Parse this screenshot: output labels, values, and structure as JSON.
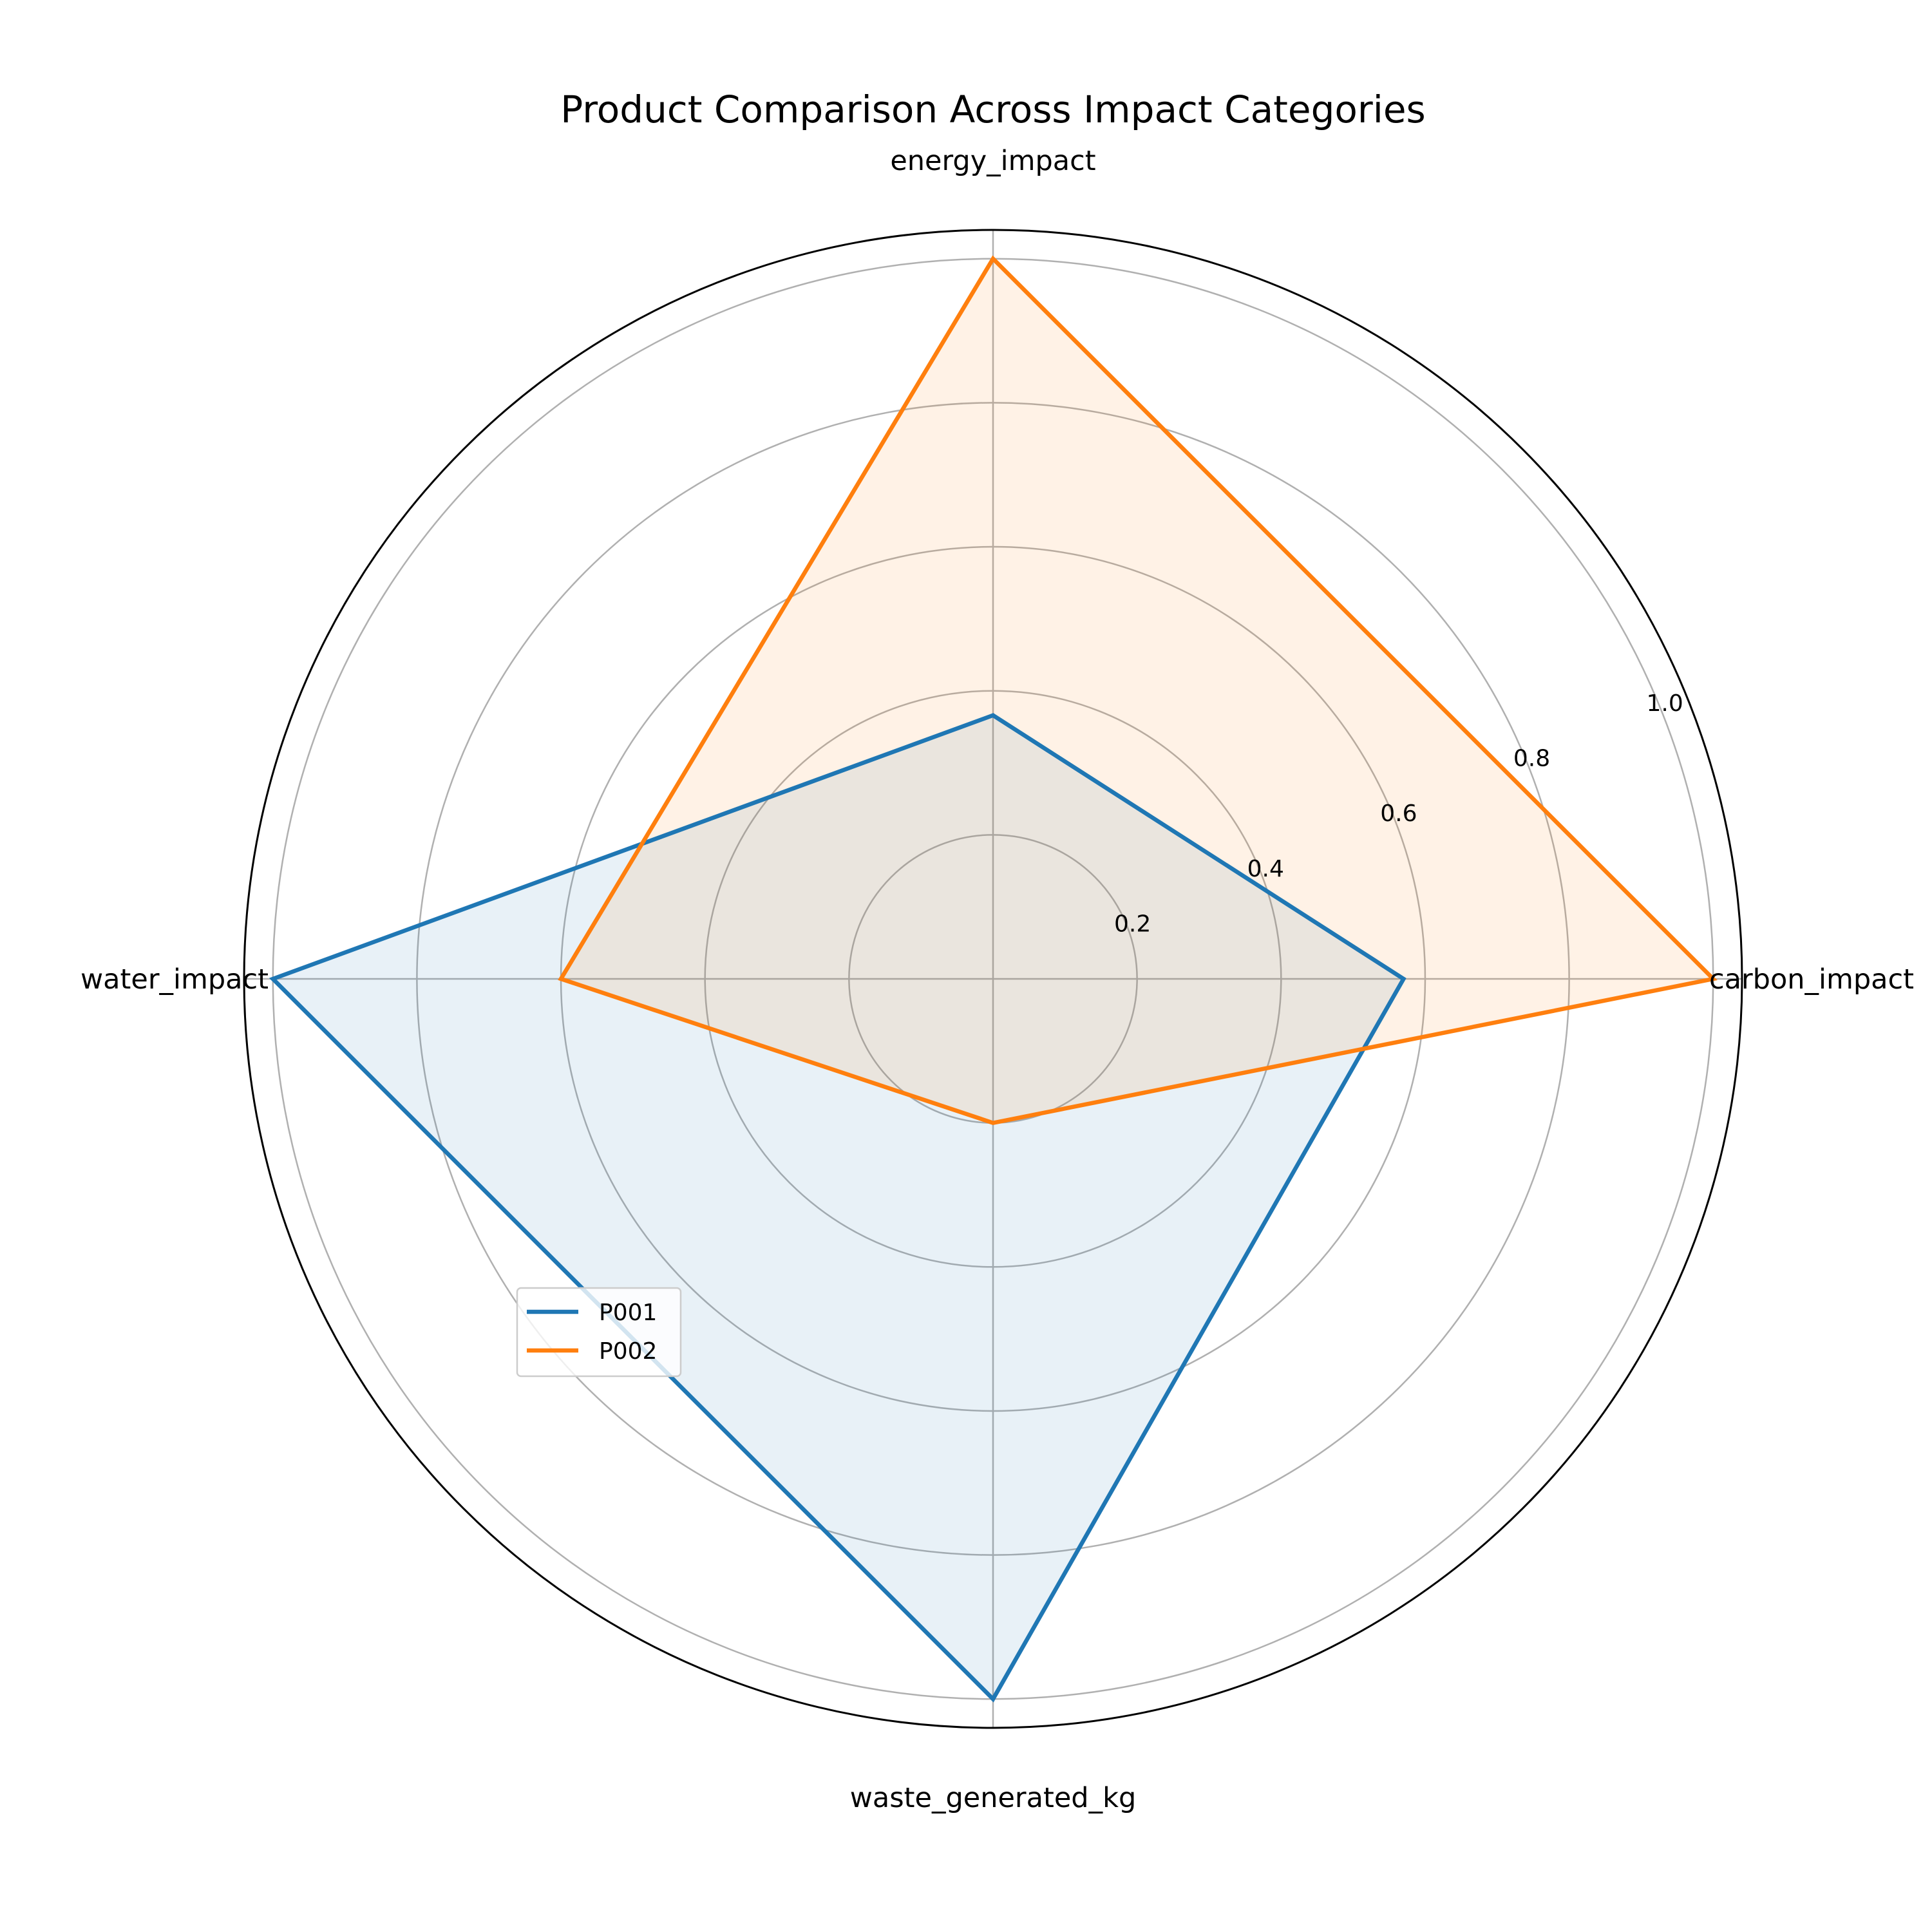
{
  "chart_data": {
    "type": "radar",
    "title": "Product Comparison Across Impact Categories",
    "axes": [
      "carbon_impact",
      "energy_impact",
      "water_impact",
      "waste_generated_kg"
    ],
    "rlim": [
      0,
      1.04
    ],
    "rticks": [
      0.2,
      0.4,
      0.6,
      0.8,
      1.0
    ],
    "rtick_labels": [
      "0.2",
      "0.4",
      "0.6",
      "0.8",
      "1.0"
    ],
    "grid": true,
    "legend_position": "lower-left",
    "series": [
      {
        "name": "P001",
        "color": "#1f77b4",
        "values": [
          0.57,
          0.366,
          1.0,
          1.0
        ]
      },
      {
        "name": "P002",
        "color": "#ff7f0e",
        "values": [
          1.0,
          1.0,
          0.6,
          0.2
        ]
      }
    ]
  }
}
